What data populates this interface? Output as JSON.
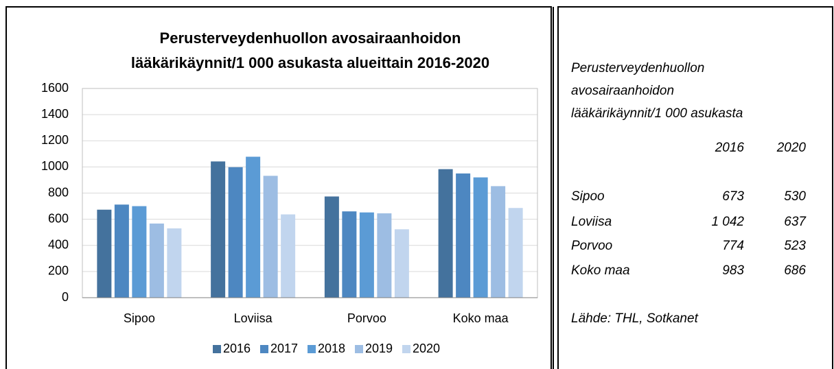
{
  "chart_data": {
    "type": "bar",
    "title": [
      "Perusterveydenhuollon avosairaanhoidon",
      "lääkärikäynnit/1 000 asukasta alueittain 2016-2020"
    ],
    "categories": [
      "Sipoo",
      "Loviisa",
      "Porvoo",
      "Koko maa"
    ],
    "series": [
      {
        "name": "2016",
        "color": "#44729d",
        "values": [
          673,
          1042,
          774,
          983
        ]
      },
      {
        "name": "2017",
        "color": "#4d87c1",
        "values": [
          712,
          998,
          660,
          950
        ]
      },
      {
        "name": "2018",
        "color": "#5b9bd5",
        "values": [
          700,
          1078,
          652,
          920
        ]
      },
      {
        "name": "2019",
        "color": "#9dbde3",
        "values": [
          567,
          932,
          645,
          853
        ]
      },
      {
        "name": "2020",
        "color": "#c1d5ee",
        "values": [
          530,
          637,
          523,
          686
        ]
      }
    ],
    "ylim": [
      0,
      1600
    ],
    "yticks": [
      0,
      200,
      400,
      600,
      800,
      1000,
      1200,
      1400,
      1600
    ],
    "grid": true,
    "legend": "bottom"
  },
  "side_panel": {
    "title": [
      "Perusterveydenhuollon",
      "avosairaanhoidon",
      "lääkärikäynnit/1 000 asukasta"
    ],
    "columns": [
      "2016",
      "2020"
    ],
    "rows": [
      [
        "Sipoo",
        "673",
        "530"
      ],
      [
        "Loviisa",
        "1 042",
        "637"
      ],
      [
        "Porvoo",
        "774",
        "523"
      ],
      [
        "Koko maa",
        "983",
        "686"
      ]
    ],
    "source": "Lähde: THL, Sotkanet"
  }
}
